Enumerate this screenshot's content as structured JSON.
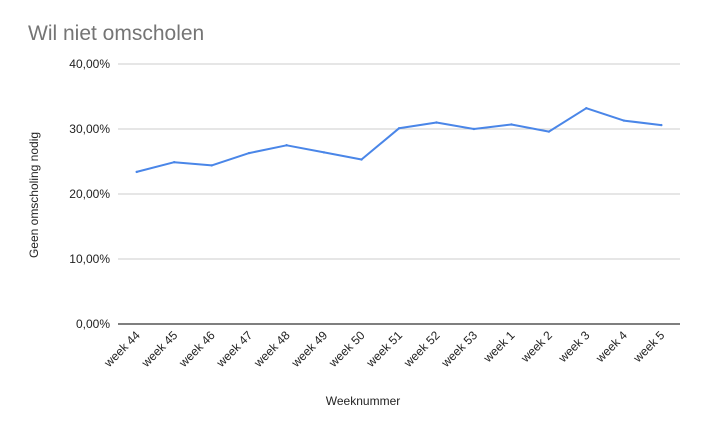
{
  "chart_data": {
    "type": "line",
    "title": "Wil niet omscholen",
    "xlabel": "Weeknummer",
    "ylabel": "Geen omscholing nodig",
    "categories": [
      "week 44",
      "week 45",
      "week 46",
      "week 47",
      "week 48",
      "week 49",
      "week 50",
      "week 51",
      "week 52",
      "week 53",
      "week 1",
      "week 2",
      "week 3",
      "week 4",
      "week 5"
    ],
    "series": [
      {
        "values": [
          23.4,
          24.9,
          24.4,
          26.3,
          27.5,
          26.4,
          25.3,
          30.1,
          31.0,
          30.0,
          30.7,
          29.6,
          33.2,
          31.3,
          30.6
        ]
      }
    ],
    "ylim": [
      0,
      40
    ],
    "yticks": [
      "0,00%",
      "10,00%",
      "20,00%",
      "30,00%",
      "40,00%"
    ],
    "ytick_values": [
      0,
      10,
      20,
      30,
      40
    ],
    "grid": true,
    "legend": "none",
    "line_color": "#4a86e8",
    "grid_color": "#cccccc",
    "axis_color": "#333333"
  }
}
